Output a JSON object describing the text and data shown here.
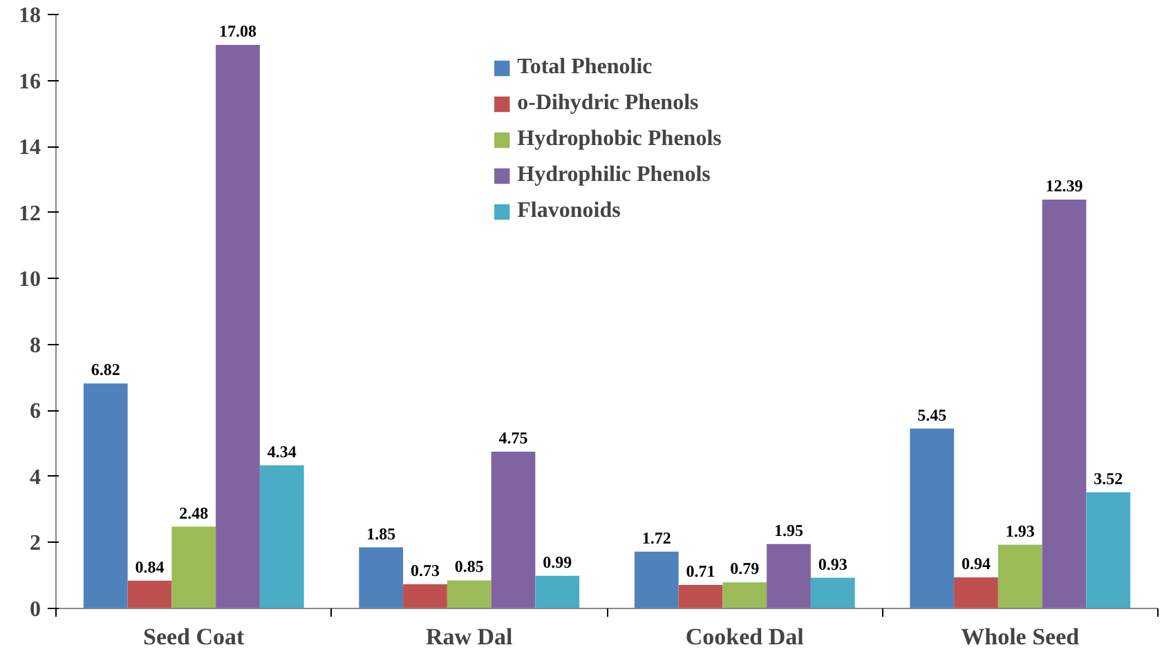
{
  "chart_data": {
    "type": "bar",
    "categories": [
      "Seed Coat",
      "Raw Dal",
      "Cooked Dal",
      "Whole Seed"
    ],
    "series": [
      {
        "name": "Total Phenolic",
        "color": "#4f81bd",
        "values": [
          6.82,
          1.85,
          1.72,
          5.45
        ]
      },
      {
        "name": "o-Dihydric Phenols",
        "color": "#c0504d",
        "values": [
          0.84,
          0.73,
          0.71,
          0.94
        ]
      },
      {
        "name": "Hydrophobic Phenols",
        "color": "#9bbb59",
        "values": [
          2.48,
          0.85,
          0.79,
          1.93
        ]
      },
      {
        "name": "Hydrophilic Phenols",
        "color": "#8064a2",
        "values": [
          17.08,
          4.75,
          1.95,
          12.39
        ]
      },
      {
        "name": "Flavonoids",
        "color": "#4bacc6",
        "values": [
          4.34,
          0.99,
          0.93,
          3.52
        ]
      }
    ],
    "ylim": [
      0,
      18
    ],
    "yticks": [
      0,
      2,
      4,
      6,
      8,
      10,
      12,
      14,
      16,
      18
    ],
    "data_labels": true,
    "grid": false,
    "legend": "top"
  }
}
